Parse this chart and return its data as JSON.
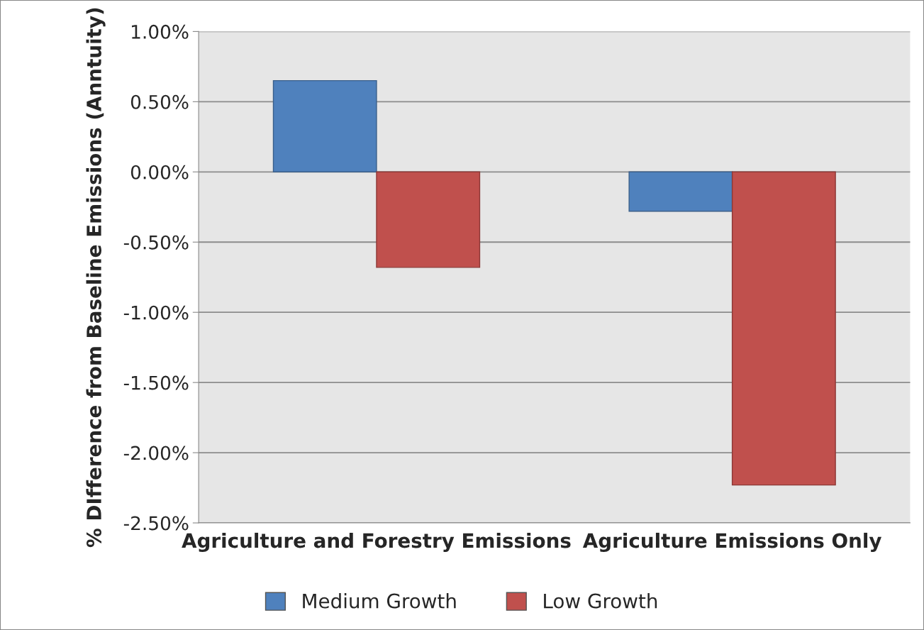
{
  "chart_data": {
    "type": "bar",
    "ylabel": "% DIfference from Baseline Emissions (Anntuity)",
    "categories": [
      "Agriculture and Forestry Emissions",
      "Agriculture Emissions Only"
    ],
    "series": [
      {
        "name": "Medium Growth",
        "color": "#4f81bd",
        "values": [
          0.65,
          -0.28
        ]
      },
      {
        "name": "Low Growth",
        "color": "#c0504d",
        "values": [
          -0.68,
          -2.23
        ]
      }
    ],
    "ylim": [
      -2.5,
      1.0
    ],
    "yticks": [
      {
        "value": -2.5,
        "label": "-2.50%"
      },
      {
        "value": -2.0,
        "label": "-2.00%"
      },
      {
        "value": -1.5,
        "label": "-1.50%"
      },
      {
        "value": -1.0,
        "label": "-1.00%"
      },
      {
        "value": -0.5,
        "label": "-0.50%"
      },
      {
        "value": 0.0,
        "label": "0.00%"
      },
      {
        "value": 0.5,
        "label": "0.50%"
      },
      {
        "value": 1.0,
        "label": "1.00%"
      }
    ],
    "grid": "y",
    "legend": "bottom"
  }
}
